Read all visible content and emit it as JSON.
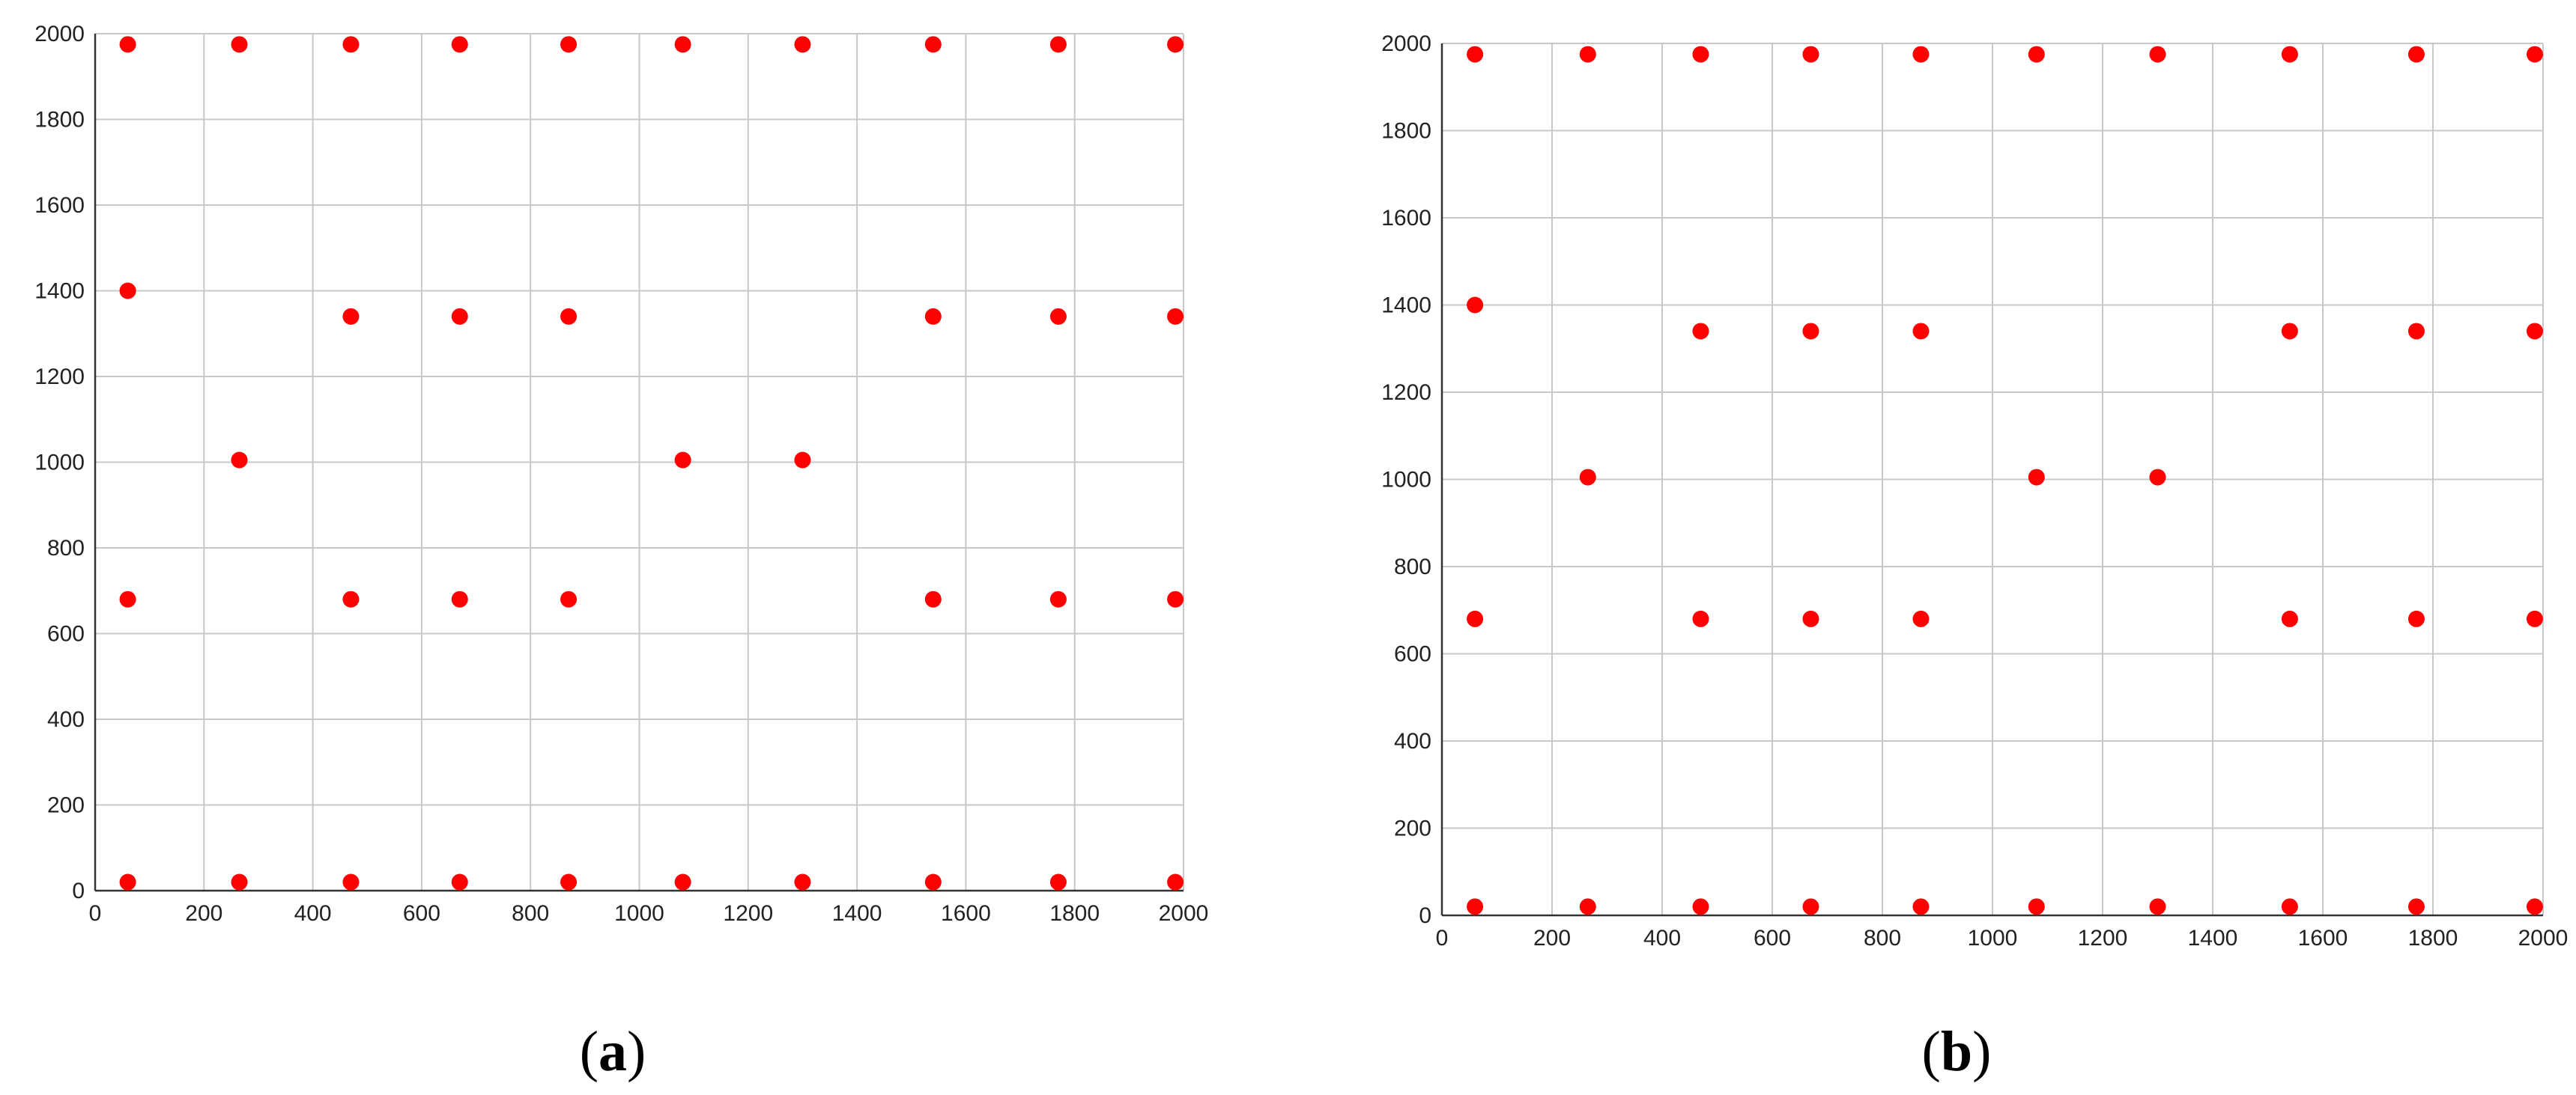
{
  "colors": {
    "marker": "#ff0000",
    "grid": "#c8c8c8",
    "axis": "#333333",
    "text": "#222222"
  },
  "chart_data": [
    {
      "type": "scatter",
      "panel_label": {
        "open": "(",
        "letter": "a",
        "close": ")"
      },
      "xlim": [
        0,
        2000
      ],
      "ylim": [
        0,
        2000
      ],
      "xticks": [
        "0",
        "200",
        "400",
        "600",
        "800",
        "1000",
        "1200",
        "1400",
        "1600",
        "1800",
        "2000"
      ],
      "yticks": [
        "0",
        "200",
        "400",
        "600",
        "800",
        "1000",
        "1200",
        "1400",
        "1600",
        "1800",
        "2000"
      ],
      "grid_x": [
        200,
        400,
        600,
        800,
        1000,
        1200,
        1400,
        1600,
        1800,
        2000
      ],
      "grid_y": [
        200,
        400,
        600,
        800,
        1000,
        1200,
        1400,
        1600,
        1800,
        2000
      ],
      "legend": "none",
      "points": [
        [
          60,
          1975
        ],
        [
          265,
          1975
        ],
        [
          470,
          1975
        ],
        [
          670,
          1975
        ],
        [
          870,
          1975
        ],
        [
          1080,
          1975
        ],
        [
          1300,
          1975
        ],
        [
          1540,
          1975
        ],
        [
          1770,
          1975
        ],
        [
          1985,
          1975
        ],
        [
          60,
          1400
        ],
        [
          470,
          1340
        ],
        [
          670,
          1340
        ],
        [
          870,
          1340
        ],
        [
          1540,
          1340
        ],
        [
          1770,
          1340
        ],
        [
          1985,
          1340
        ],
        [
          265,
          1005
        ],
        [
          1080,
          1005
        ],
        [
          1300,
          1005
        ],
        [
          60,
          680
        ],
        [
          470,
          680
        ],
        [
          670,
          680
        ],
        [
          870,
          680
        ],
        [
          1540,
          680
        ],
        [
          1770,
          680
        ],
        [
          1985,
          680
        ],
        [
          60,
          20
        ],
        [
          265,
          20
        ],
        [
          470,
          20
        ],
        [
          670,
          20
        ],
        [
          870,
          20
        ],
        [
          1080,
          20
        ],
        [
          1300,
          20
        ],
        [
          1540,
          20
        ],
        [
          1770,
          20
        ],
        [
          1985,
          20
        ]
      ]
    },
    {
      "type": "scatter",
      "panel_label": {
        "open": "(",
        "letter": "b",
        "close": ")"
      },
      "xlim": [
        0,
        2000
      ],
      "ylim": [
        0,
        2000
      ],
      "xticks": [
        "0",
        "200",
        "400",
        "600",
        "800",
        "1000",
        "1200",
        "1400",
        "1600",
        "1800",
        "2000"
      ],
      "yticks": [
        "0",
        "200",
        "400",
        "600",
        "800",
        "1000",
        "1200",
        "1400",
        "1600",
        "1800",
        "2000"
      ],
      "grid_x": [
        200,
        400,
        600,
        800,
        1000,
        1200,
        1400,
        1600,
        1800,
        2000
      ],
      "grid_y": [
        200,
        400,
        600,
        800,
        1000,
        1200,
        1400,
        1600,
        1800,
        2000
      ],
      "legend": "none",
      "points": [
        [
          60,
          1975
        ],
        [
          265,
          1975
        ],
        [
          470,
          1975
        ],
        [
          670,
          1975
        ],
        [
          870,
          1975
        ],
        [
          1080,
          1975
        ],
        [
          1300,
          1975
        ],
        [
          1540,
          1975
        ],
        [
          1770,
          1975
        ],
        [
          1985,
          1975
        ],
        [
          60,
          1400
        ],
        [
          470,
          1340
        ],
        [
          670,
          1340
        ],
        [
          870,
          1340
        ],
        [
          1540,
          1340
        ],
        [
          1770,
          1340
        ],
        [
          1985,
          1340
        ],
        [
          265,
          1005
        ],
        [
          1080,
          1005
        ],
        [
          1300,
          1005
        ],
        [
          60,
          680
        ],
        [
          470,
          680
        ],
        [
          670,
          680
        ],
        [
          870,
          680
        ],
        [
          1540,
          680
        ],
        [
          1770,
          680
        ],
        [
          1985,
          680
        ],
        [
          60,
          20
        ],
        [
          265,
          20
        ],
        [
          470,
          20
        ],
        [
          670,
          20
        ],
        [
          870,
          20
        ],
        [
          1080,
          20
        ],
        [
          1300,
          20
        ],
        [
          1540,
          20
        ],
        [
          1770,
          20
        ],
        [
          1985,
          20
        ]
      ]
    }
  ]
}
